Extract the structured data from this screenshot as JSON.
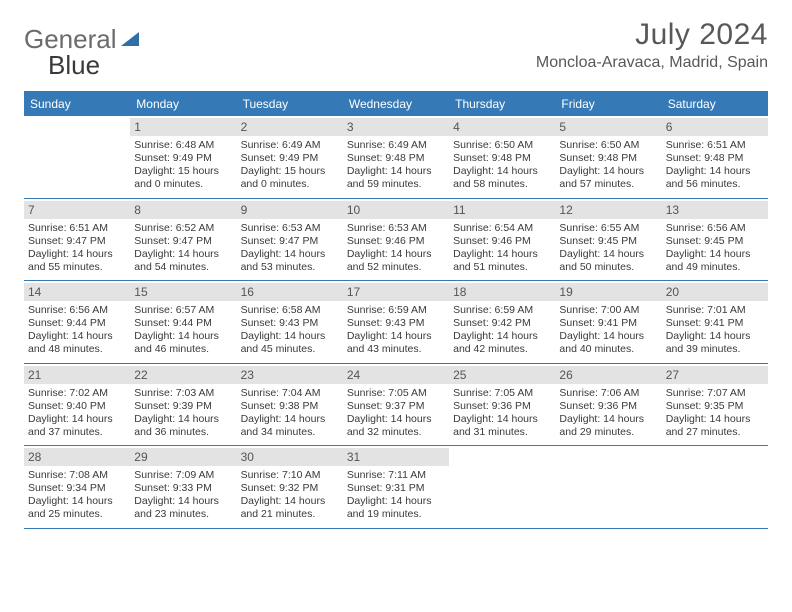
{
  "logo": {
    "part1": "General",
    "part2": "Blue"
  },
  "title": "July 2024",
  "location": "Moncloa-Aravaca, Madrid, Spain",
  "style": {
    "accent": "#357ab7",
    "daynum_bg": "#e3e3e3",
    "text": "#3a3a3a",
    "title_color": "#585858",
    "page_bg": "#ffffff",
    "title_fontsize": 30,
    "location_fontsize": 16,
    "dow_fontsize": 12,
    "body_fontsize": 10.5
  },
  "dow": [
    "Sunday",
    "Monday",
    "Tuesday",
    "Wednesday",
    "Thursday",
    "Friday",
    "Saturday"
  ],
  "weeks": [
    [
      null,
      {
        "n": "1",
        "sr": "Sunrise: 6:48 AM",
        "ss": "Sunset: 9:49 PM",
        "d1": "Daylight: 15 hours",
        "d2": "and 0 minutes."
      },
      {
        "n": "2",
        "sr": "Sunrise: 6:49 AM",
        "ss": "Sunset: 9:49 PM",
        "d1": "Daylight: 15 hours",
        "d2": "and 0 minutes."
      },
      {
        "n": "3",
        "sr": "Sunrise: 6:49 AM",
        "ss": "Sunset: 9:48 PM",
        "d1": "Daylight: 14 hours",
        "d2": "and 59 minutes."
      },
      {
        "n": "4",
        "sr": "Sunrise: 6:50 AM",
        "ss": "Sunset: 9:48 PM",
        "d1": "Daylight: 14 hours",
        "d2": "and 58 minutes."
      },
      {
        "n": "5",
        "sr": "Sunrise: 6:50 AM",
        "ss": "Sunset: 9:48 PM",
        "d1": "Daylight: 14 hours",
        "d2": "and 57 minutes."
      },
      {
        "n": "6",
        "sr": "Sunrise: 6:51 AM",
        "ss": "Sunset: 9:48 PM",
        "d1": "Daylight: 14 hours",
        "d2": "and 56 minutes."
      }
    ],
    [
      {
        "n": "7",
        "sr": "Sunrise: 6:51 AM",
        "ss": "Sunset: 9:47 PM",
        "d1": "Daylight: 14 hours",
        "d2": "and 55 minutes."
      },
      {
        "n": "8",
        "sr": "Sunrise: 6:52 AM",
        "ss": "Sunset: 9:47 PM",
        "d1": "Daylight: 14 hours",
        "d2": "and 54 minutes."
      },
      {
        "n": "9",
        "sr": "Sunrise: 6:53 AM",
        "ss": "Sunset: 9:47 PM",
        "d1": "Daylight: 14 hours",
        "d2": "and 53 minutes."
      },
      {
        "n": "10",
        "sr": "Sunrise: 6:53 AM",
        "ss": "Sunset: 9:46 PM",
        "d1": "Daylight: 14 hours",
        "d2": "and 52 minutes."
      },
      {
        "n": "11",
        "sr": "Sunrise: 6:54 AM",
        "ss": "Sunset: 9:46 PM",
        "d1": "Daylight: 14 hours",
        "d2": "and 51 minutes."
      },
      {
        "n": "12",
        "sr": "Sunrise: 6:55 AM",
        "ss": "Sunset: 9:45 PM",
        "d1": "Daylight: 14 hours",
        "d2": "and 50 minutes."
      },
      {
        "n": "13",
        "sr": "Sunrise: 6:56 AM",
        "ss": "Sunset: 9:45 PM",
        "d1": "Daylight: 14 hours",
        "d2": "and 49 minutes."
      }
    ],
    [
      {
        "n": "14",
        "sr": "Sunrise: 6:56 AM",
        "ss": "Sunset: 9:44 PM",
        "d1": "Daylight: 14 hours",
        "d2": "and 48 minutes."
      },
      {
        "n": "15",
        "sr": "Sunrise: 6:57 AM",
        "ss": "Sunset: 9:44 PM",
        "d1": "Daylight: 14 hours",
        "d2": "and 46 minutes."
      },
      {
        "n": "16",
        "sr": "Sunrise: 6:58 AM",
        "ss": "Sunset: 9:43 PM",
        "d1": "Daylight: 14 hours",
        "d2": "and 45 minutes."
      },
      {
        "n": "17",
        "sr": "Sunrise: 6:59 AM",
        "ss": "Sunset: 9:43 PM",
        "d1": "Daylight: 14 hours",
        "d2": "and 43 minutes."
      },
      {
        "n": "18",
        "sr": "Sunrise: 6:59 AM",
        "ss": "Sunset: 9:42 PM",
        "d1": "Daylight: 14 hours",
        "d2": "and 42 minutes."
      },
      {
        "n": "19",
        "sr": "Sunrise: 7:00 AM",
        "ss": "Sunset: 9:41 PM",
        "d1": "Daylight: 14 hours",
        "d2": "and 40 minutes."
      },
      {
        "n": "20",
        "sr": "Sunrise: 7:01 AM",
        "ss": "Sunset: 9:41 PM",
        "d1": "Daylight: 14 hours",
        "d2": "and 39 minutes."
      }
    ],
    [
      {
        "n": "21",
        "sr": "Sunrise: 7:02 AM",
        "ss": "Sunset: 9:40 PM",
        "d1": "Daylight: 14 hours",
        "d2": "and 37 minutes."
      },
      {
        "n": "22",
        "sr": "Sunrise: 7:03 AM",
        "ss": "Sunset: 9:39 PM",
        "d1": "Daylight: 14 hours",
        "d2": "and 36 minutes."
      },
      {
        "n": "23",
        "sr": "Sunrise: 7:04 AM",
        "ss": "Sunset: 9:38 PM",
        "d1": "Daylight: 14 hours",
        "d2": "and 34 minutes."
      },
      {
        "n": "24",
        "sr": "Sunrise: 7:05 AM",
        "ss": "Sunset: 9:37 PM",
        "d1": "Daylight: 14 hours",
        "d2": "and 32 minutes."
      },
      {
        "n": "25",
        "sr": "Sunrise: 7:05 AM",
        "ss": "Sunset: 9:36 PM",
        "d1": "Daylight: 14 hours",
        "d2": "and 31 minutes."
      },
      {
        "n": "26",
        "sr": "Sunrise: 7:06 AM",
        "ss": "Sunset: 9:36 PM",
        "d1": "Daylight: 14 hours",
        "d2": "and 29 minutes."
      },
      {
        "n": "27",
        "sr": "Sunrise: 7:07 AM",
        "ss": "Sunset: 9:35 PM",
        "d1": "Daylight: 14 hours",
        "d2": "and 27 minutes."
      }
    ],
    [
      {
        "n": "28",
        "sr": "Sunrise: 7:08 AM",
        "ss": "Sunset: 9:34 PM",
        "d1": "Daylight: 14 hours",
        "d2": "and 25 minutes."
      },
      {
        "n": "29",
        "sr": "Sunrise: 7:09 AM",
        "ss": "Sunset: 9:33 PM",
        "d1": "Daylight: 14 hours",
        "d2": "and 23 minutes."
      },
      {
        "n": "30",
        "sr": "Sunrise: 7:10 AM",
        "ss": "Sunset: 9:32 PM",
        "d1": "Daylight: 14 hours",
        "d2": "and 21 minutes."
      },
      {
        "n": "31",
        "sr": "Sunrise: 7:11 AM",
        "ss": "Sunset: 9:31 PM",
        "d1": "Daylight: 14 hours",
        "d2": "and 19 minutes."
      },
      null,
      null,
      null
    ]
  ]
}
